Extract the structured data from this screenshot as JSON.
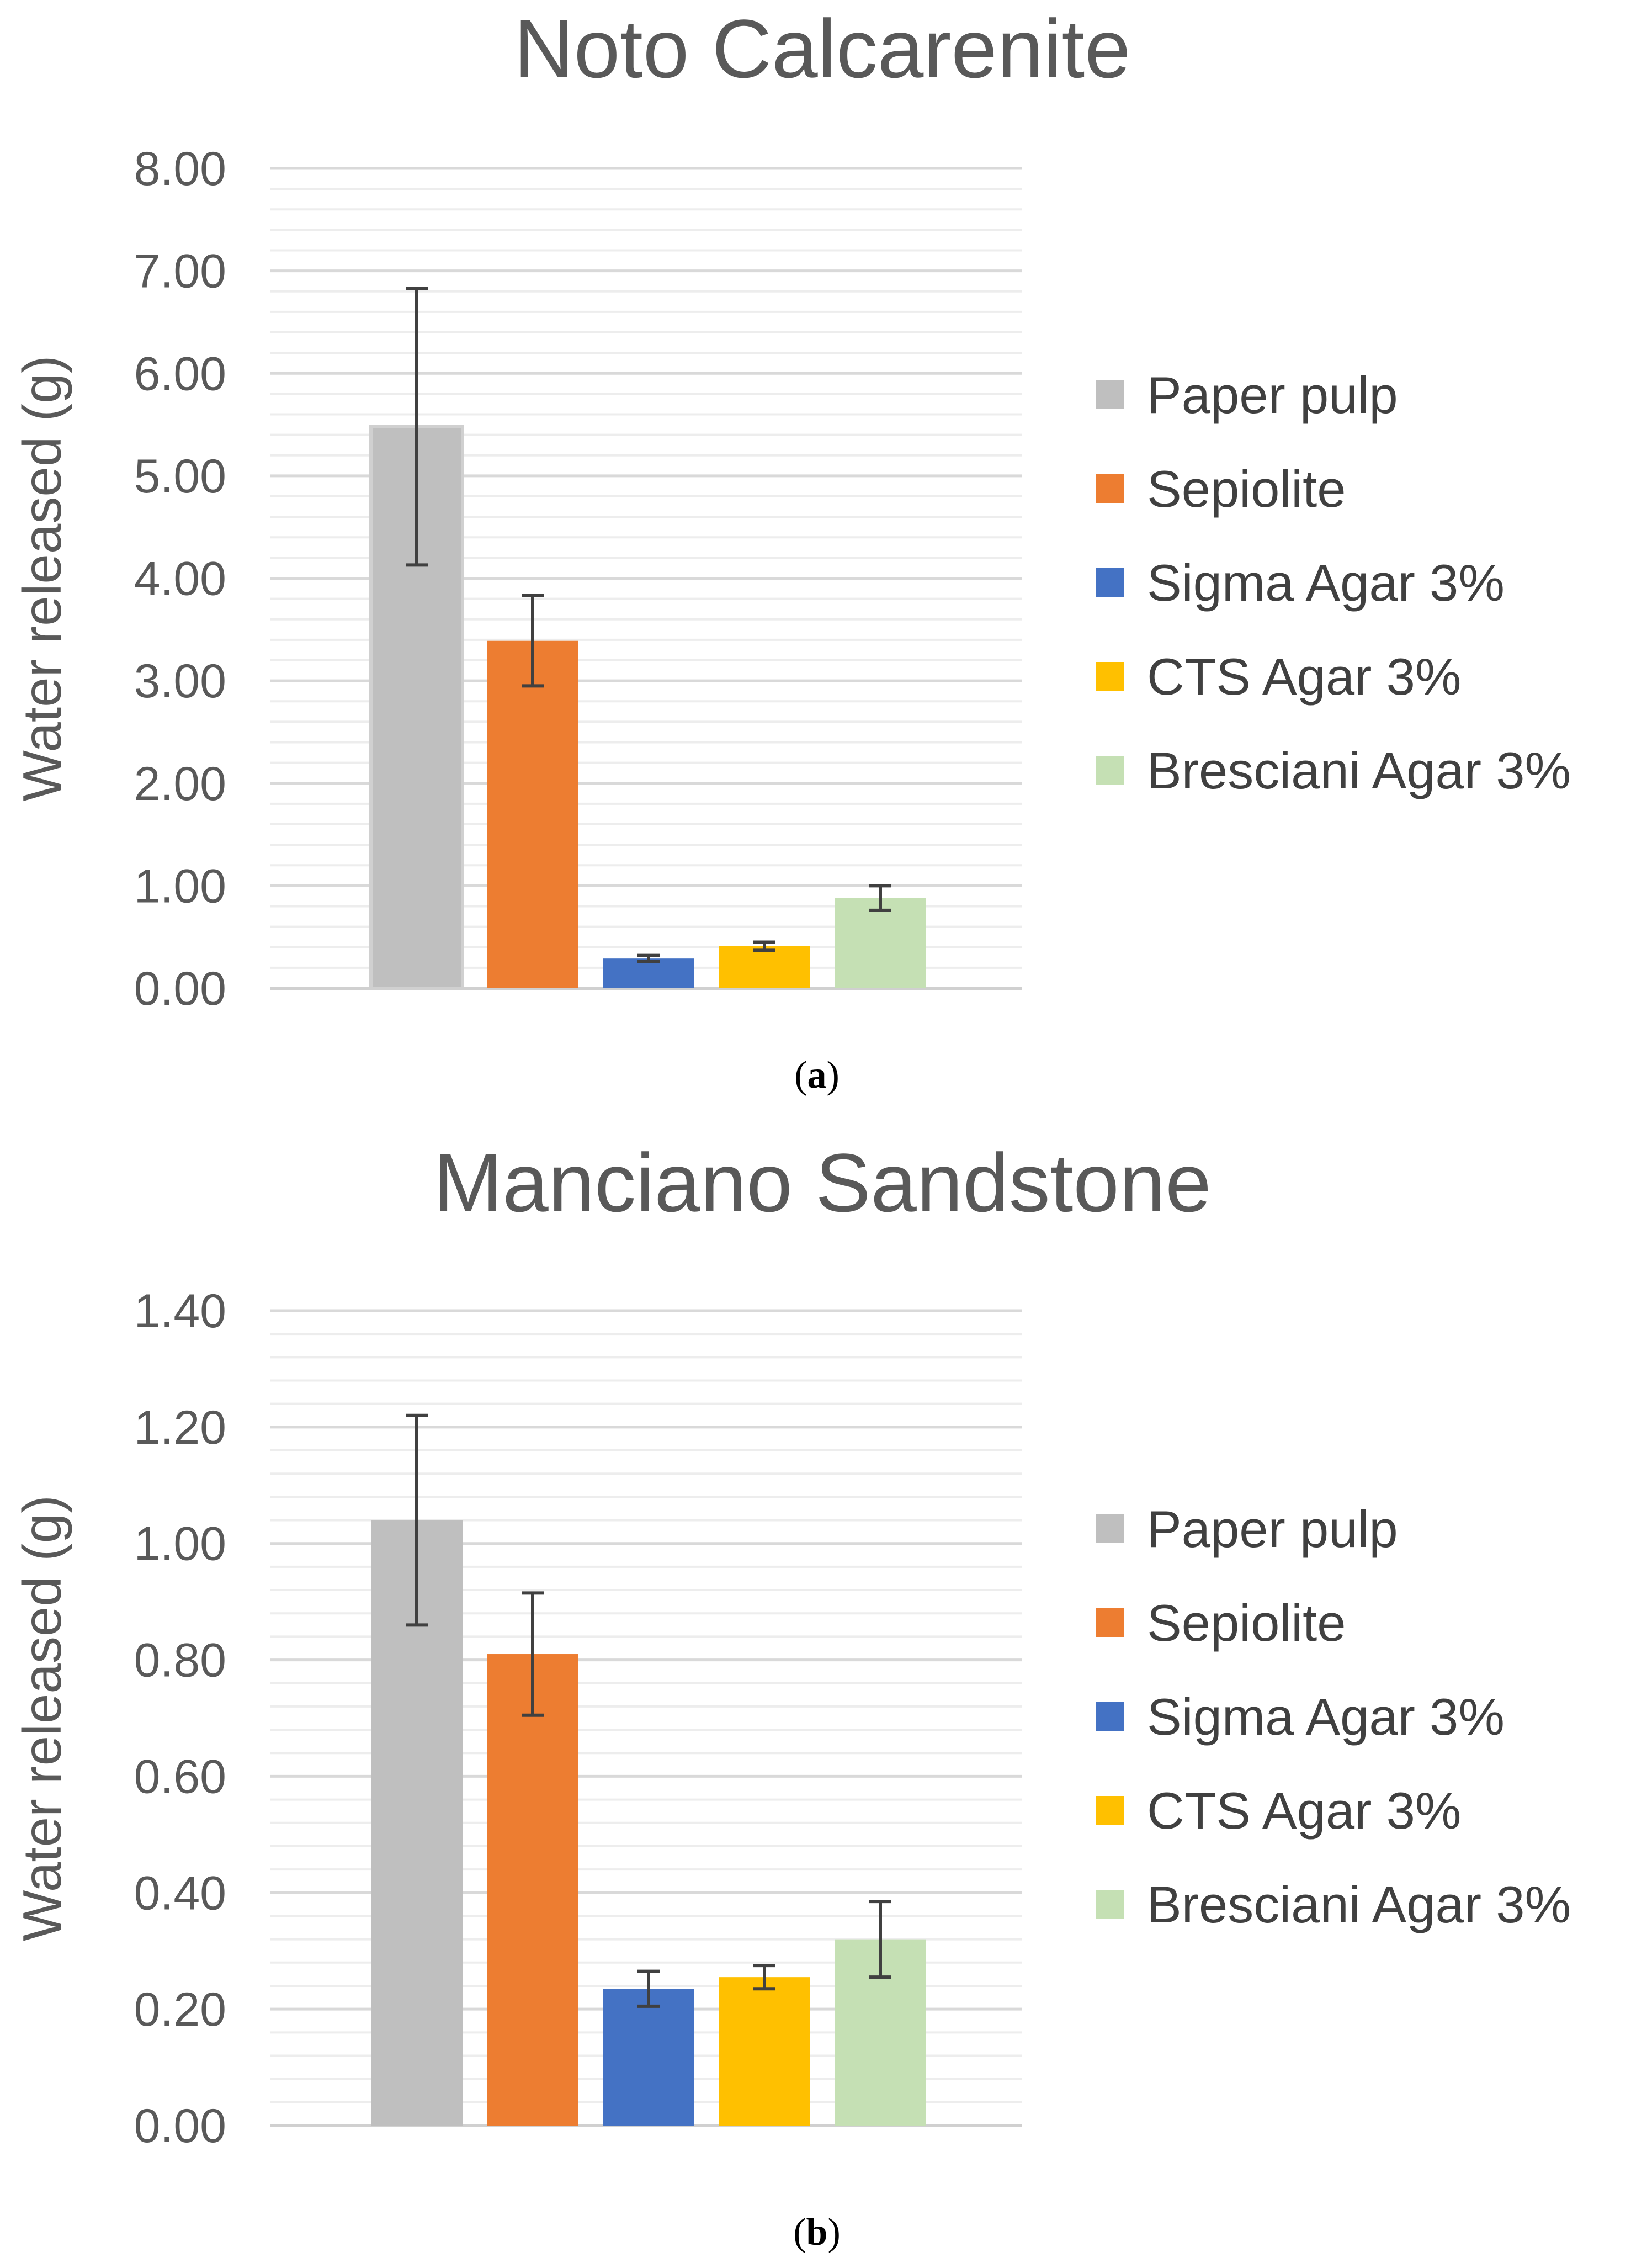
{
  "colors": {
    "paper_pulp": "#bfbfbf",
    "sepiolite": "#ed7d31",
    "sigma_agar": "#4472c4",
    "cts_agar": "#ffc000",
    "bresciani_agar": "#c5e0b4",
    "major_grid": "#d9d9d9",
    "minor_grid": "#ededed",
    "error_bar": "#404040",
    "text": "#595959"
  },
  "chart_data": [
    {
      "type": "bar",
      "title": "Noto Calcarenite",
      "ylabel": "Water released (g)",
      "xlabel": "",
      "ylim": [
        0,
        8
      ],
      "yticks": [
        "0.00",
        "1.00",
        "2.00",
        "3.00",
        "4.00",
        "5.00",
        "6.00",
        "7.00",
        "8.00"
      ],
      "legend_position": "right",
      "grid": true,
      "series": [
        {
          "name": "Paper pulp",
          "value": 5.48,
          "error": 1.35
        },
        {
          "name": "Sepiolite",
          "value": 3.39,
          "error": 0.44
        },
        {
          "name": "Sigma Agar 3%",
          "value": 0.29,
          "error": 0.03
        },
        {
          "name": "CTS Agar 3%",
          "value": 0.41,
          "error": 0.04
        },
        {
          "name": "Bresciani Agar 3%",
          "value": 0.88,
          "error": 0.12
        }
      ],
      "caption": "a"
    },
    {
      "type": "bar",
      "title": "Manciano Sandstone",
      "ylabel": "Water released (g)",
      "xlabel": "",
      "ylim": [
        0,
        1.4
      ],
      "yticks": [
        "0.00",
        "0.20",
        "0.40",
        "0.60",
        "0.80",
        "1.00",
        "1.20",
        "1.40"
      ],
      "legend_position": "right",
      "grid": true,
      "series": [
        {
          "name": "Paper pulp",
          "value": 1.04,
          "error": 0.18
        },
        {
          "name": "Sepiolite",
          "value": 0.81,
          "error": 0.105
        },
        {
          "name": "Sigma Agar 3%",
          "value": 0.235,
          "error": 0.03
        },
        {
          "name": "CTS Agar 3%",
          "value": 0.255,
          "error": 0.02
        },
        {
          "name": "Bresciani Agar 3%",
          "value": 0.32,
          "error": 0.065
        }
      ],
      "caption": "b"
    }
  ]
}
